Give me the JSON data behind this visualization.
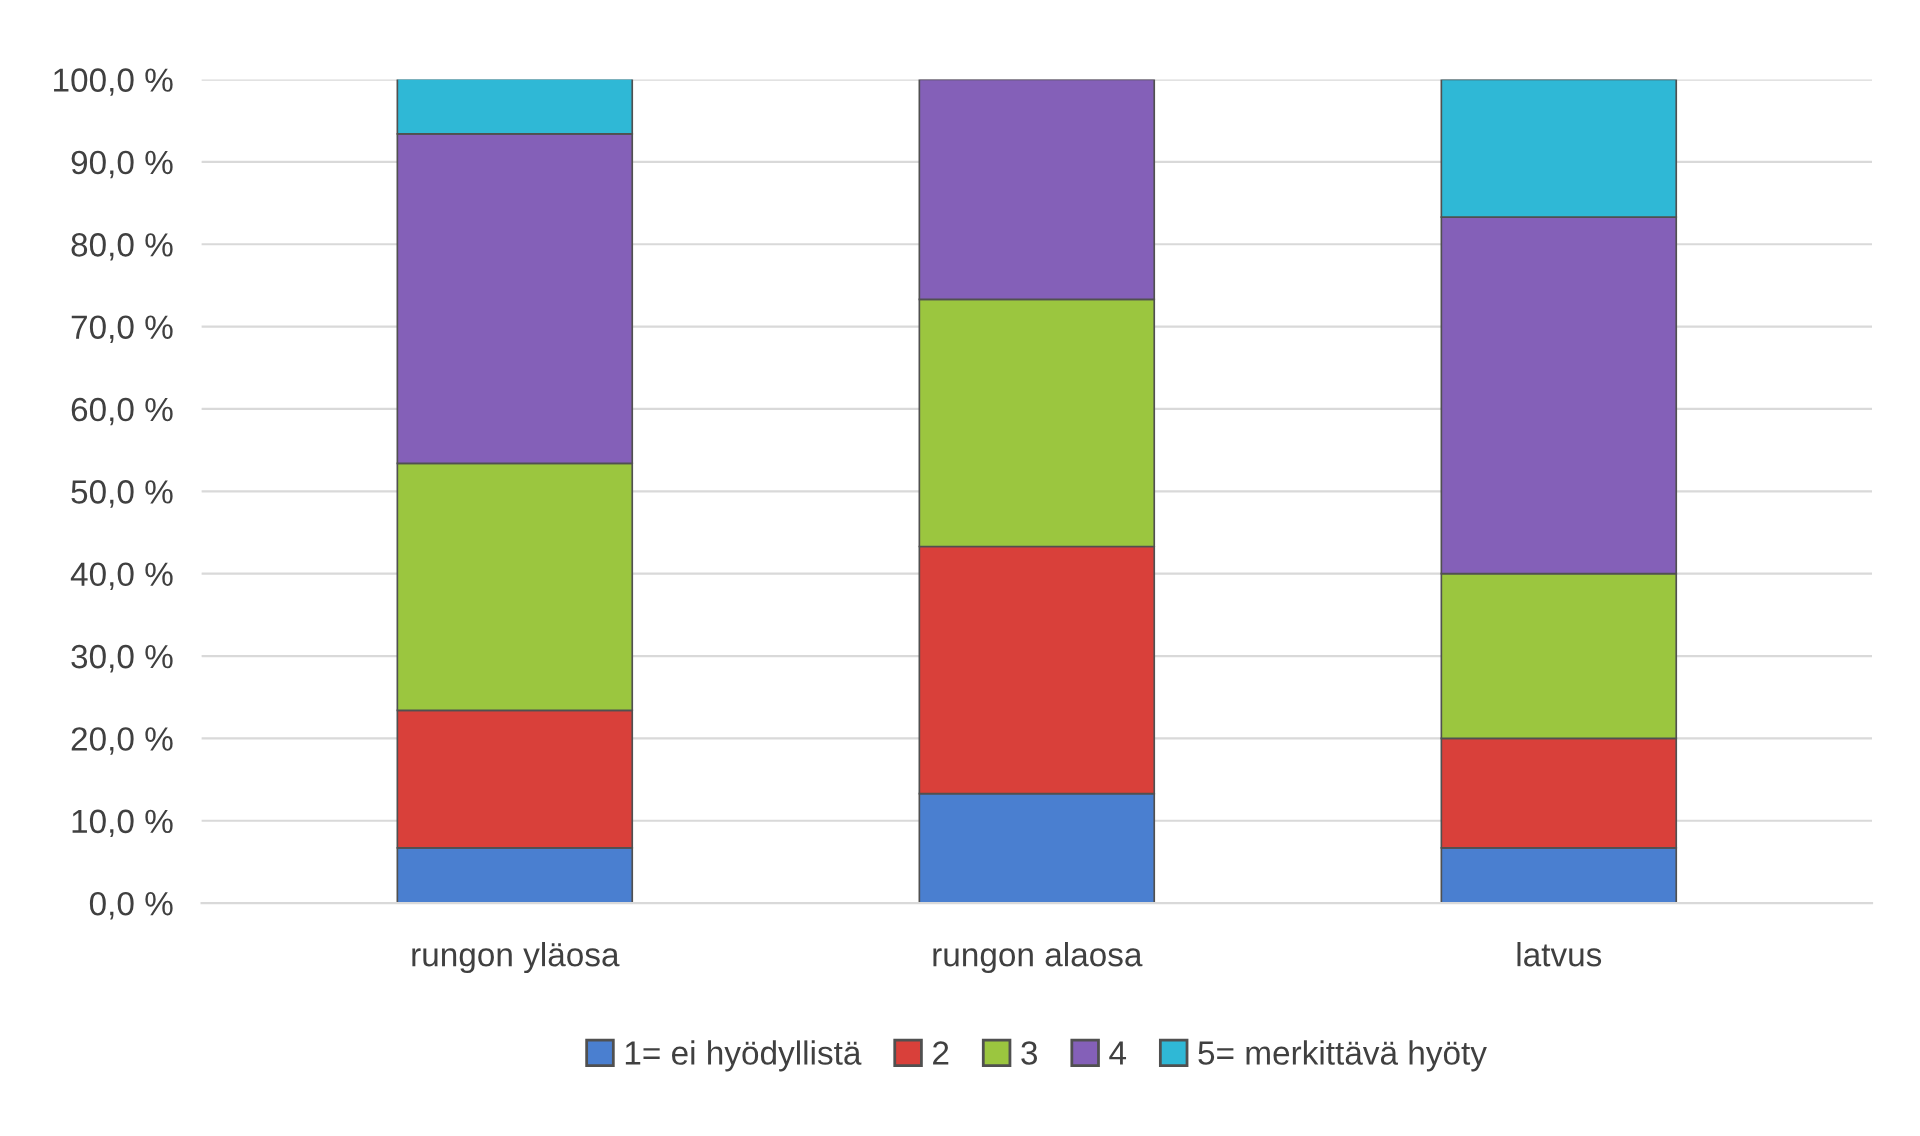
{
  "chart_data": {
    "type": "bar",
    "stacked": true,
    "categories": [
      "rungon yläosa",
      "rungon alaosa",
      "latvus"
    ],
    "series": [
      {
        "name": "1= ei hyödyllistä",
        "color": "#4a7fd0",
        "values": [
          6.7,
          13.3,
          6.7
        ]
      },
      {
        "name": "2",
        "color": "#d9403a",
        "values": [
          16.7,
          30.0,
          13.3
        ]
      },
      {
        "name": "3",
        "color": "#9bc63f",
        "values": [
          30.0,
          30.0,
          20.0
        ]
      },
      {
        "name": "4",
        "color": "#8460b8",
        "values": [
          40.0,
          26.7,
          43.3
        ]
      },
      {
        "name": "5= merkittävä hyöty",
        "color": "#2fb8d6",
        "values": [
          6.7,
          null,
          16.7
        ]
      }
    ],
    "ylim": [
      0,
      100
    ],
    "yticks": [
      {
        "value": 0,
        "label": "0,0 %"
      },
      {
        "value": 10,
        "label": "10,0 %"
      },
      {
        "value": 20,
        "label": "20,0 %"
      },
      {
        "value": 30,
        "label": "30,0 %"
      },
      {
        "value": 40,
        "label": "40,0 %"
      },
      {
        "value": 50,
        "label": "50,0 %"
      },
      {
        "value": 60,
        "label": "60,0 %"
      },
      {
        "value": 70,
        "label": "70,0 %"
      },
      {
        "value": 80,
        "label": "80,0 %"
      },
      {
        "value": 90,
        "label": "90,0 %"
      },
      {
        "value": 100,
        "label": "100,0 %"
      }
    ],
    "grid": "y",
    "legend": "bottom"
  }
}
